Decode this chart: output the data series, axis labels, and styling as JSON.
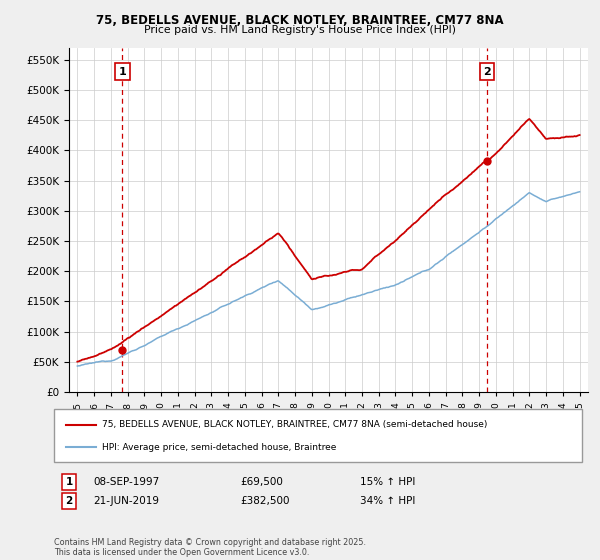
{
  "title_line1": "75, BEDELLS AVENUE, BLACK NOTLEY, BRAINTREE, CM77 8NA",
  "title_line2": "Price paid vs. HM Land Registry's House Price Index (HPI)",
  "legend_line1": "75, BEDELLS AVENUE, BLACK NOTLEY, BRAINTREE, CM77 8NA (semi-detached house)",
  "legend_line2": "HPI: Average price, semi-detached house, Braintree",
  "footnote": "Contains HM Land Registry data © Crown copyright and database right 2025.\nThis data is licensed under the Open Government Licence v3.0.",
  "sale1_label": "1",
  "sale1_date": "08-SEP-1997",
  "sale1_price": "£69,500",
  "sale1_hpi": "15% ↑ HPI",
  "sale1_year": 1997.69,
  "sale1_value": 69500,
  "sale2_label": "2",
  "sale2_date": "21-JUN-2019",
  "sale2_price": "£382,500",
  "sale2_hpi": "34% ↑ HPI",
  "sale2_year": 2019.47,
  "sale2_value": 382500,
  "house_color": "#cc0000",
  "hpi_color": "#7aadd4",
  "vline_color": "#cc0000",
  "ylim_min": 0,
  "ylim_max": 570000,
  "yticks": [
    0,
    50000,
    100000,
    150000,
    200000,
    250000,
    300000,
    350000,
    400000,
    450000,
    500000,
    550000
  ],
  "xlabel_years": [
    1995,
    1996,
    1997,
    1998,
    1999,
    2000,
    2001,
    2002,
    2003,
    2004,
    2005,
    2006,
    2007,
    2008,
    2009,
    2010,
    2011,
    2012,
    2013,
    2014,
    2015,
    2016,
    2017,
    2018,
    2019,
    2020,
    2021,
    2022,
    2023,
    2024,
    2025
  ],
  "xlim_min": 1994.5,
  "xlim_max": 2025.5,
  "background_color": "#efefef",
  "plot_bg_color": "#ffffff",
  "grid_color": "#cccccc"
}
